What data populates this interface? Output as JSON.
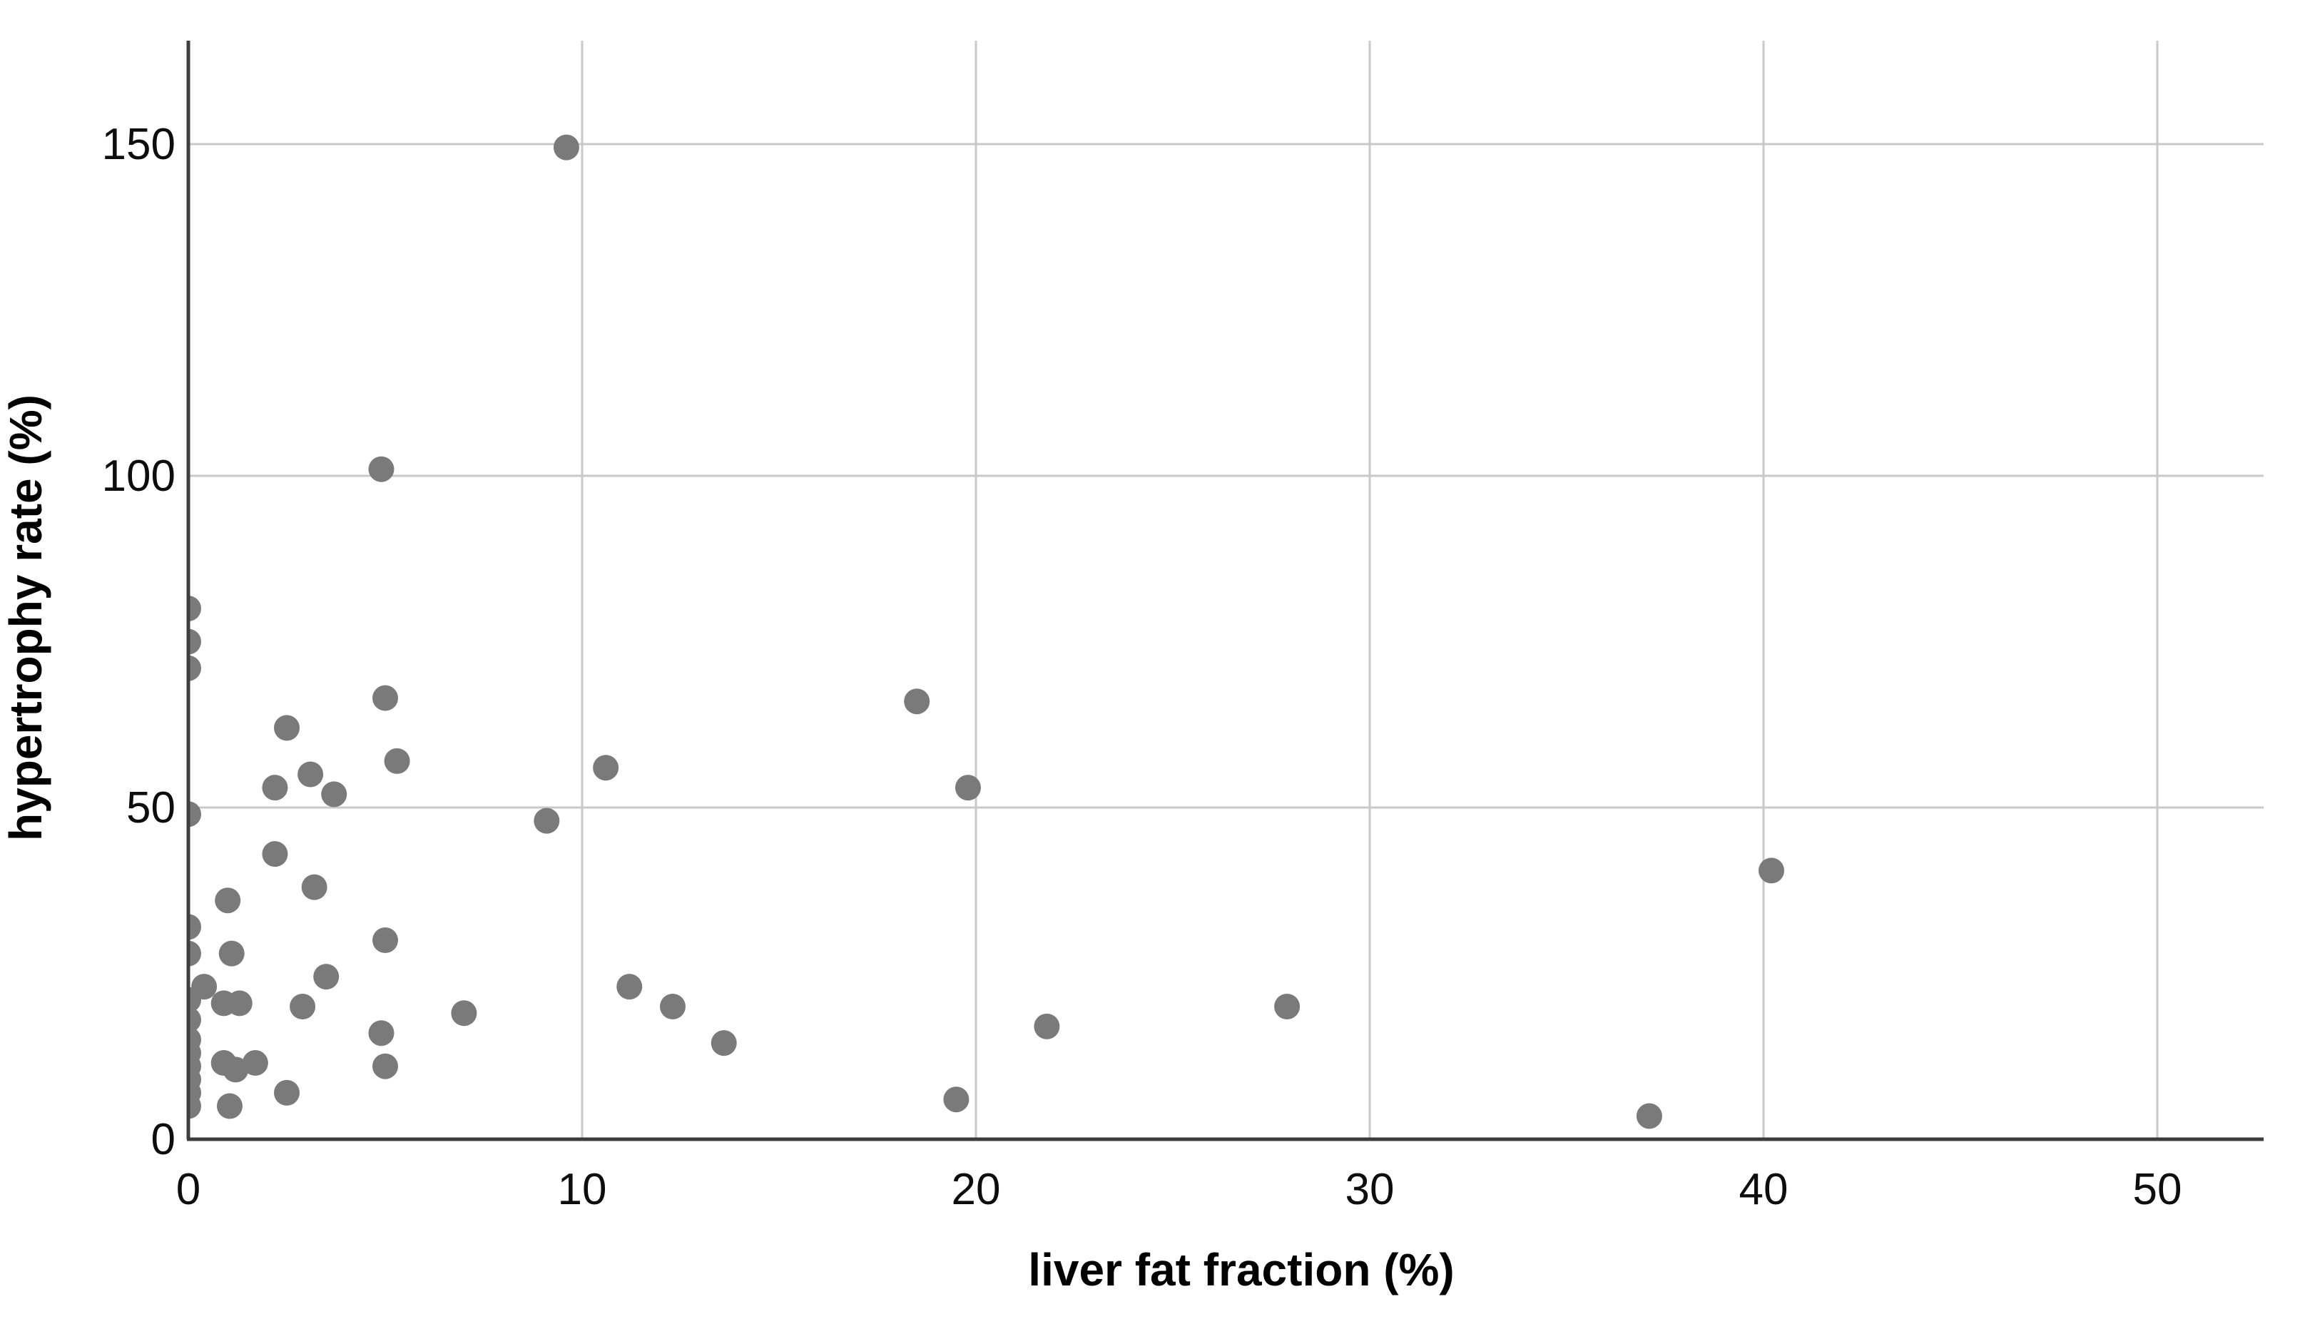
{
  "chart_data": {
    "type": "scatter",
    "title": "",
    "xlabel": "liver fat fraction (%)",
    "ylabel": "hypertrophy rate (%)",
    "xticks": [
      "0",
      "10",
      "20",
      "30",
      "40",
      "50"
    ],
    "xtick_values": [
      0,
      10,
      20,
      30,
      40,
      50
    ],
    "yticks": [
      "0",
      "50",
      "100",
      "150"
    ],
    "ytick_values": [
      0,
      50,
      100,
      150
    ],
    "xlim": [
      0,
      52.7
    ],
    "ylim": [
      0,
      165.6
    ],
    "grid": true,
    "legend_position": "none",
    "marker_shape": "circle",
    "marker_color": "#7a7a7a",
    "grid_color": "#c9c9c9",
    "axis_color": "#3d3d3d",
    "tick_label_color": "#0d0d0d",
    "background_color": "#ffffff",
    "points": [
      [
        0,
        80
      ],
      [
        0,
        75
      ],
      [
        0,
        71
      ],
      [
        0,
        49
      ],
      [
        0,
        32
      ],
      [
        0,
        28
      ],
      [
        0,
        21
      ],
      [
        0,
        18
      ],
      [
        0,
        15
      ],
      [
        0,
        13
      ],
      [
        0,
        11
      ],
      [
        0,
        9
      ],
      [
        0,
        7
      ],
      [
        0,
        5
      ],
      [
        0.4,
        23
      ],
      [
        0.9,
        20.5
      ],
      [
        0.9,
        11.5
      ],
      [
        1,
        36
      ],
      [
        1.05,
        5
      ],
      [
        1.1,
        28
      ],
      [
        1.2,
        10.5
      ],
      [
        1.3,
        20.5
      ],
      [
        1.7,
        11.5
      ],
      [
        2.2,
        53
      ],
      [
        2.2,
        43
      ],
      [
        2.5,
        62
      ],
      [
        2.5,
        7
      ],
      [
        2.9,
        20
      ],
      [
        3.1,
        55
      ],
      [
        3.2,
        38
      ],
      [
        3.5,
        24.5
      ],
      [
        3.7,
        52
      ],
      [
        4.9,
        101
      ],
      [
        4.9,
        16
      ],
      [
        5,
        66.5
      ],
      [
        5,
        30
      ],
      [
        5,
        11
      ],
      [
        5.3,
        57
      ],
      [
        7,
        19
      ],
      [
        9.1,
        48
      ],
      [
        9.6,
        149.5
      ],
      [
        10.6,
        56
      ],
      [
        11.2,
        23
      ],
      [
        12.3,
        20
      ],
      [
        13.6,
        14.5
      ],
      [
        18.5,
        66
      ],
      [
        19.5,
        6
      ],
      [
        19.8,
        53
      ],
      [
        21.8,
        17
      ],
      [
        27.9,
        20
      ],
      [
        37.1,
        3.5
      ],
      [
        40.2,
        40.5
      ]
    ]
  }
}
